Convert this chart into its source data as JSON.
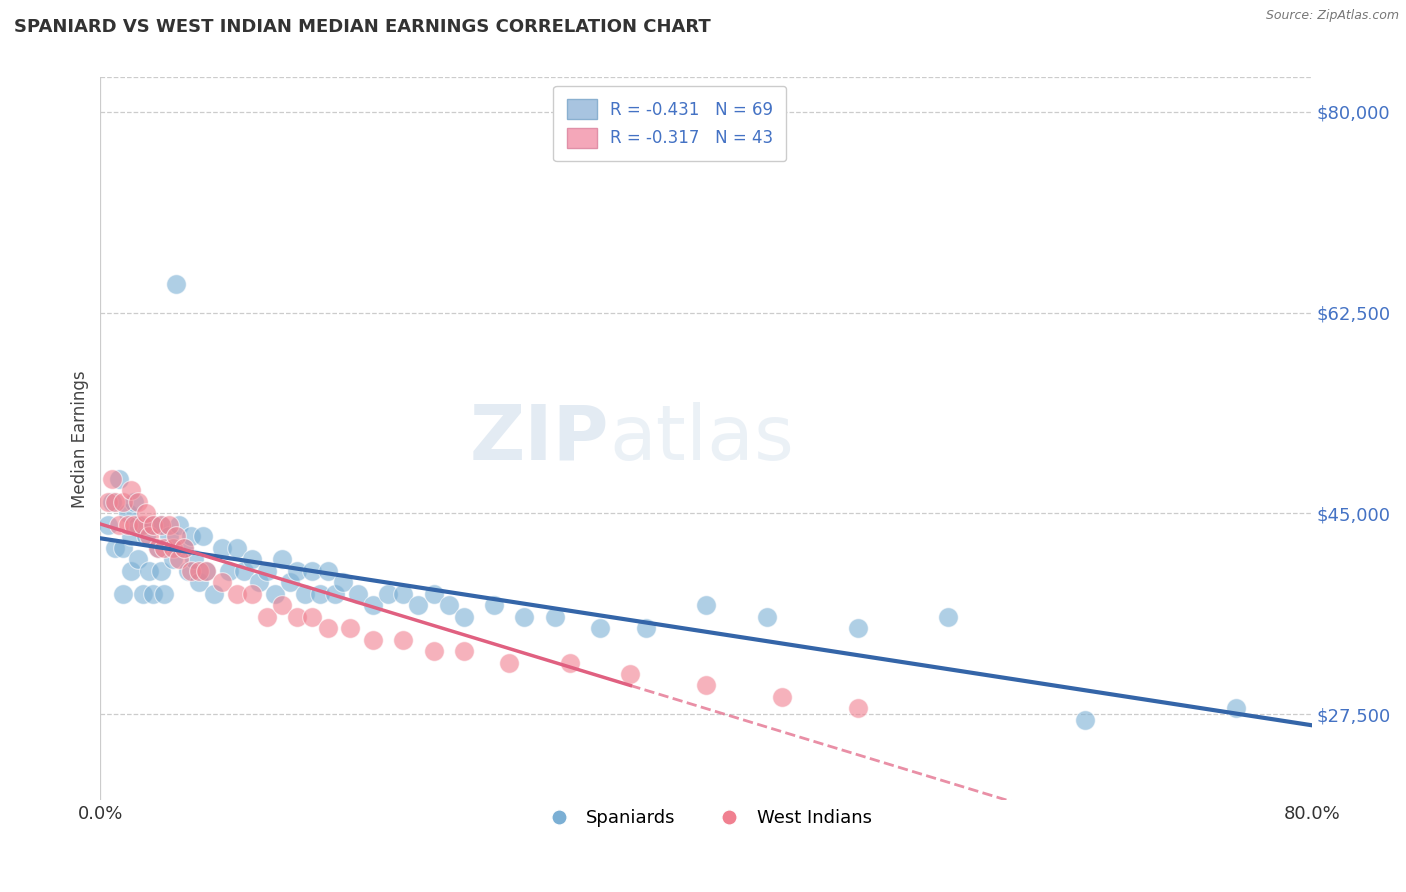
{
  "title": "SPANIARD VS WEST INDIAN MEDIAN EARNINGS CORRELATION CHART",
  "source": "Source: ZipAtlas.com",
  "ylabel": "Median Earnings",
  "yticks": [
    27500,
    45000,
    62500,
    80000
  ],
  "ytick_labels": [
    "$27,500",
    "$45,000",
    "$62,500",
    "$80,000"
  ],
  "xlim": [
    0.0,
    0.8
  ],
  "ylim": [
    20000,
    83000
  ],
  "legend_entries": [
    {
      "label": "R = -0.431   N = 69",
      "color": "#a8c4e0"
    },
    {
      "label": "R = -0.317   N = 43",
      "color": "#f4a7b9"
    }
  ],
  "legend_labels": [
    "Spaniards",
    "West Indians"
  ],
  "spaniards_color": "#7bafd4",
  "west_indians_color": "#f08090",
  "trend_spaniards_color": "#3465a8",
  "trend_west_indians_color": "#e06080",
  "watermark": "ZIPatlas",
  "spaniards_x": [
    0.005,
    0.008,
    0.01,
    0.012,
    0.015,
    0.015,
    0.018,
    0.02,
    0.02,
    0.022,
    0.025,
    0.025,
    0.028,
    0.03,
    0.032,
    0.035,
    0.035,
    0.038,
    0.04,
    0.04,
    0.042,
    0.045,
    0.048,
    0.05,
    0.052,
    0.055,
    0.058,
    0.06,
    0.062,
    0.065,
    0.068,
    0.07,
    0.075,
    0.08,
    0.085,
    0.09,
    0.095,
    0.1,
    0.105,
    0.11,
    0.115,
    0.12,
    0.125,
    0.13,
    0.135,
    0.14,
    0.145,
    0.15,
    0.155,
    0.16,
    0.17,
    0.18,
    0.19,
    0.2,
    0.21,
    0.22,
    0.23,
    0.24,
    0.26,
    0.28,
    0.3,
    0.33,
    0.36,
    0.4,
    0.44,
    0.5,
    0.56,
    0.65,
    0.75
  ],
  "spaniards_y": [
    44000,
    46000,
    42000,
    48000,
    42000,
    38000,
    45000,
    43000,
    40000,
    46000,
    44000,
    41000,
    38000,
    43000,
    40000,
    44000,
    38000,
    42000,
    44000,
    40000,
    38000,
    43000,
    41000,
    65000,
    44000,
    42000,
    40000,
    43000,
    41000,
    39000,
    43000,
    40000,
    38000,
    42000,
    40000,
    42000,
    40000,
    41000,
    39000,
    40000,
    38000,
    41000,
    39000,
    40000,
    38000,
    40000,
    38000,
    40000,
    38000,
    39000,
    38000,
    37000,
    38000,
    38000,
    37000,
    38000,
    37000,
    36000,
    37000,
    36000,
    36000,
    35000,
    35000,
    37000,
    36000,
    35000,
    36000,
    27000,
    28000
  ],
  "west_indians_x": [
    0.005,
    0.008,
    0.01,
    0.012,
    0.015,
    0.018,
    0.02,
    0.022,
    0.025,
    0.028,
    0.03,
    0.032,
    0.035,
    0.038,
    0.04,
    0.042,
    0.045,
    0.048,
    0.05,
    0.052,
    0.055,
    0.06,
    0.065,
    0.07,
    0.08,
    0.09,
    0.1,
    0.11,
    0.12,
    0.13,
    0.14,
    0.15,
    0.165,
    0.18,
    0.2,
    0.22,
    0.24,
    0.27,
    0.31,
    0.35,
    0.4,
    0.45,
    0.5
  ],
  "west_indians_y": [
    46000,
    48000,
    46000,
    44000,
    46000,
    44000,
    47000,
    44000,
    46000,
    44000,
    45000,
    43000,
    44000,
    42000,
    44000,
    42000,
    44000,
    42000,
    43000,
    41000,
    42000,
    40000,
    40000,
    40000,
    39000,
    38000,
    38000,
    36000,
    37000,
    36000,
    36000,
    35000,
    35000,
    34000,
    34000,
    33000,
    33000,
    32000,
    32000,
    31000,
    30000,
    29000,
    28000
  ]
}
